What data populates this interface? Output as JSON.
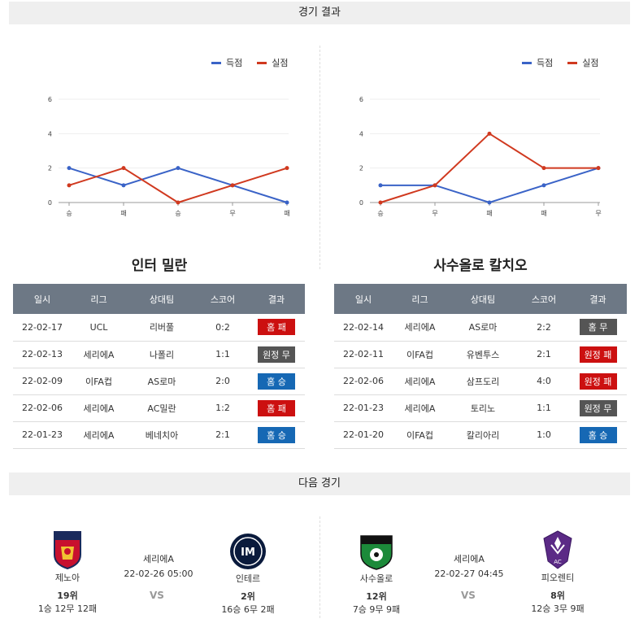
{
  "sections": {
    "results_title": "경기 결과",
    "next_title": "다음 경기"
  },
  "legend": {
    "scored": "득점",
    "conceded": "실점",
    "scored_color": "#3a63c7",
    "conceded_color": "#d0391f"
  },
  "left": {
    "team": "인터 밀란",
    "chart_data": {
      "type": "line",
      "categories": [
        "승",
        "패",
        "승",
        "무",
        "패"
      ],
      "series": [
        {
          "name": "득점",
          "values": [
            2,
            1,
            2,
            1,
            0
          ]
        },
        {
          "name": "실점",
          "values": [
            1,
            2,
            0,
            1,
            2
          ]
        }
      ],
      "yticks": [
        "0",
        "2",
        "4",
        "6"
      ],
      "ylim": [
        0,
        6
      ]
    },
    "headers": [
      "일시",
      "리그",
      "상대팀",
      "스코어",
      "결과"
    ],
    "rows": [
      {
        "date": "22-02-17",
        "league": "UCL",
        "opponent": "리버풀",
        "score": "0:2",
        "result": "홈 패",
        "color": "#cc1010"
      },
      {
        "date": "22-02-13",
        "league": "세리에A",
        "opponent": "나폴리",
        "score": "1:1",
        "result": "원정 무",
        "color": "#555555"
      },
      {
        "date": "22-02-09",
        "league": "이FA컵",
        "opponent": "AS로마",
        "score": "2:0",
        "result": "홈 승",
        "color": "#1668b4"
      },
      {
        "date": "22-02-06",
        "league": "세리에A",
        "opponent": "AC밀란",
        "score": "1:2",
        "result": "홈 패",
        "color": "#cc1010"
      },
      {
        "date": "22-01-23",
        "league": "세리에A",
        "opponent": "베네치아",
        "score": "2:1",
        "result": "홈 승",
        "color": "#1668b4"
      }
    ]
  },
  "right": {
    "team": "사수올로 칼치오",
    "chart_data": {
      "type": "line",
      "categories": [
        "승",
        "무",
        "패",
        "패",
        "무"
      ],
      "series": [
        {
          "name": "득점",
          "values": [
            1,
            1,
            0,
            1,
            2
          ]
        },
        {
          "name": "실점",
          "values": [
            0,
            1,
            4,
            2,
            2
          ]
        }
      ],
      "yticks": [
        "0",
        "2",
        "4",
        "6"
      ],
      "ylim": [
        0,
        6
      ]
    },
    "headers": [
      "일시",
      "리그",
      "상대팀",
      "스코어",
      "결과"
    ],
    "rows": [
      {
        "date": "22-02-14",
        "league": "세리에A",
        "opponent": "AS로마",
        "score": "2:2",
        "result": "홈 무",
        "color": "#555555"
      },
      {
        "date": "22-02-11",
        "league": "이FA컵",
        "opponent": "유벤투스",
        "score": "2:1",
        "result": "원정 패",
        "color": "#cc1010"
      },
      {
        "date": "22-02-06",
        "league": "세리에A",
        "opponent": "삼프도리",
        "score": "4:0",
        "result": "원정 패",
        "color": "#cc1010"
      },
      {
        "date": "22-01-23",
        "league": "세리에A",
        "opponent": "토리노",
        "score": "1:1",
        "result": "원정 무",
        "color": "#555555"
      },
      {
        "date": "22-01-20",
        "league": "이FA컵",
        "opponent": "칼리아리",
        "score": "1:0",
        "result": "홈 승",
        "color": "#1668b4"
      }
    ]
  },
  "next": [
    {
      "home": {
        "name": "제노아",
        "rank": "19위",
        "record": "1승 12무 12패",
        "logo": "genoa-logo"
      },
      "league": "세리에A",
      "datetime": "22-02-26 05:00",
      "vs": "VS",
      "away": {
        "name": "인테르",
        "rank": "2위",
        "record": "16승 6무 2패",
        "logo": "inter-logo"
      }
    },
    {
      "home": {
        "name": "사수올로",
        "rank": "12위",
        "record": "7승 9무 9패",
        "logo": "sassuolo-logo"
      },
      "league": "세리에A",
      "datetime": "22-02-27 04:45",
      "vs": "VS",
      "away": {
        "name": "피오렌티",
        "rank": "8위",
        "record": "12승 3무 9패",
        "logo": "fiorentina-logo"
      }
    }
  ]
}
